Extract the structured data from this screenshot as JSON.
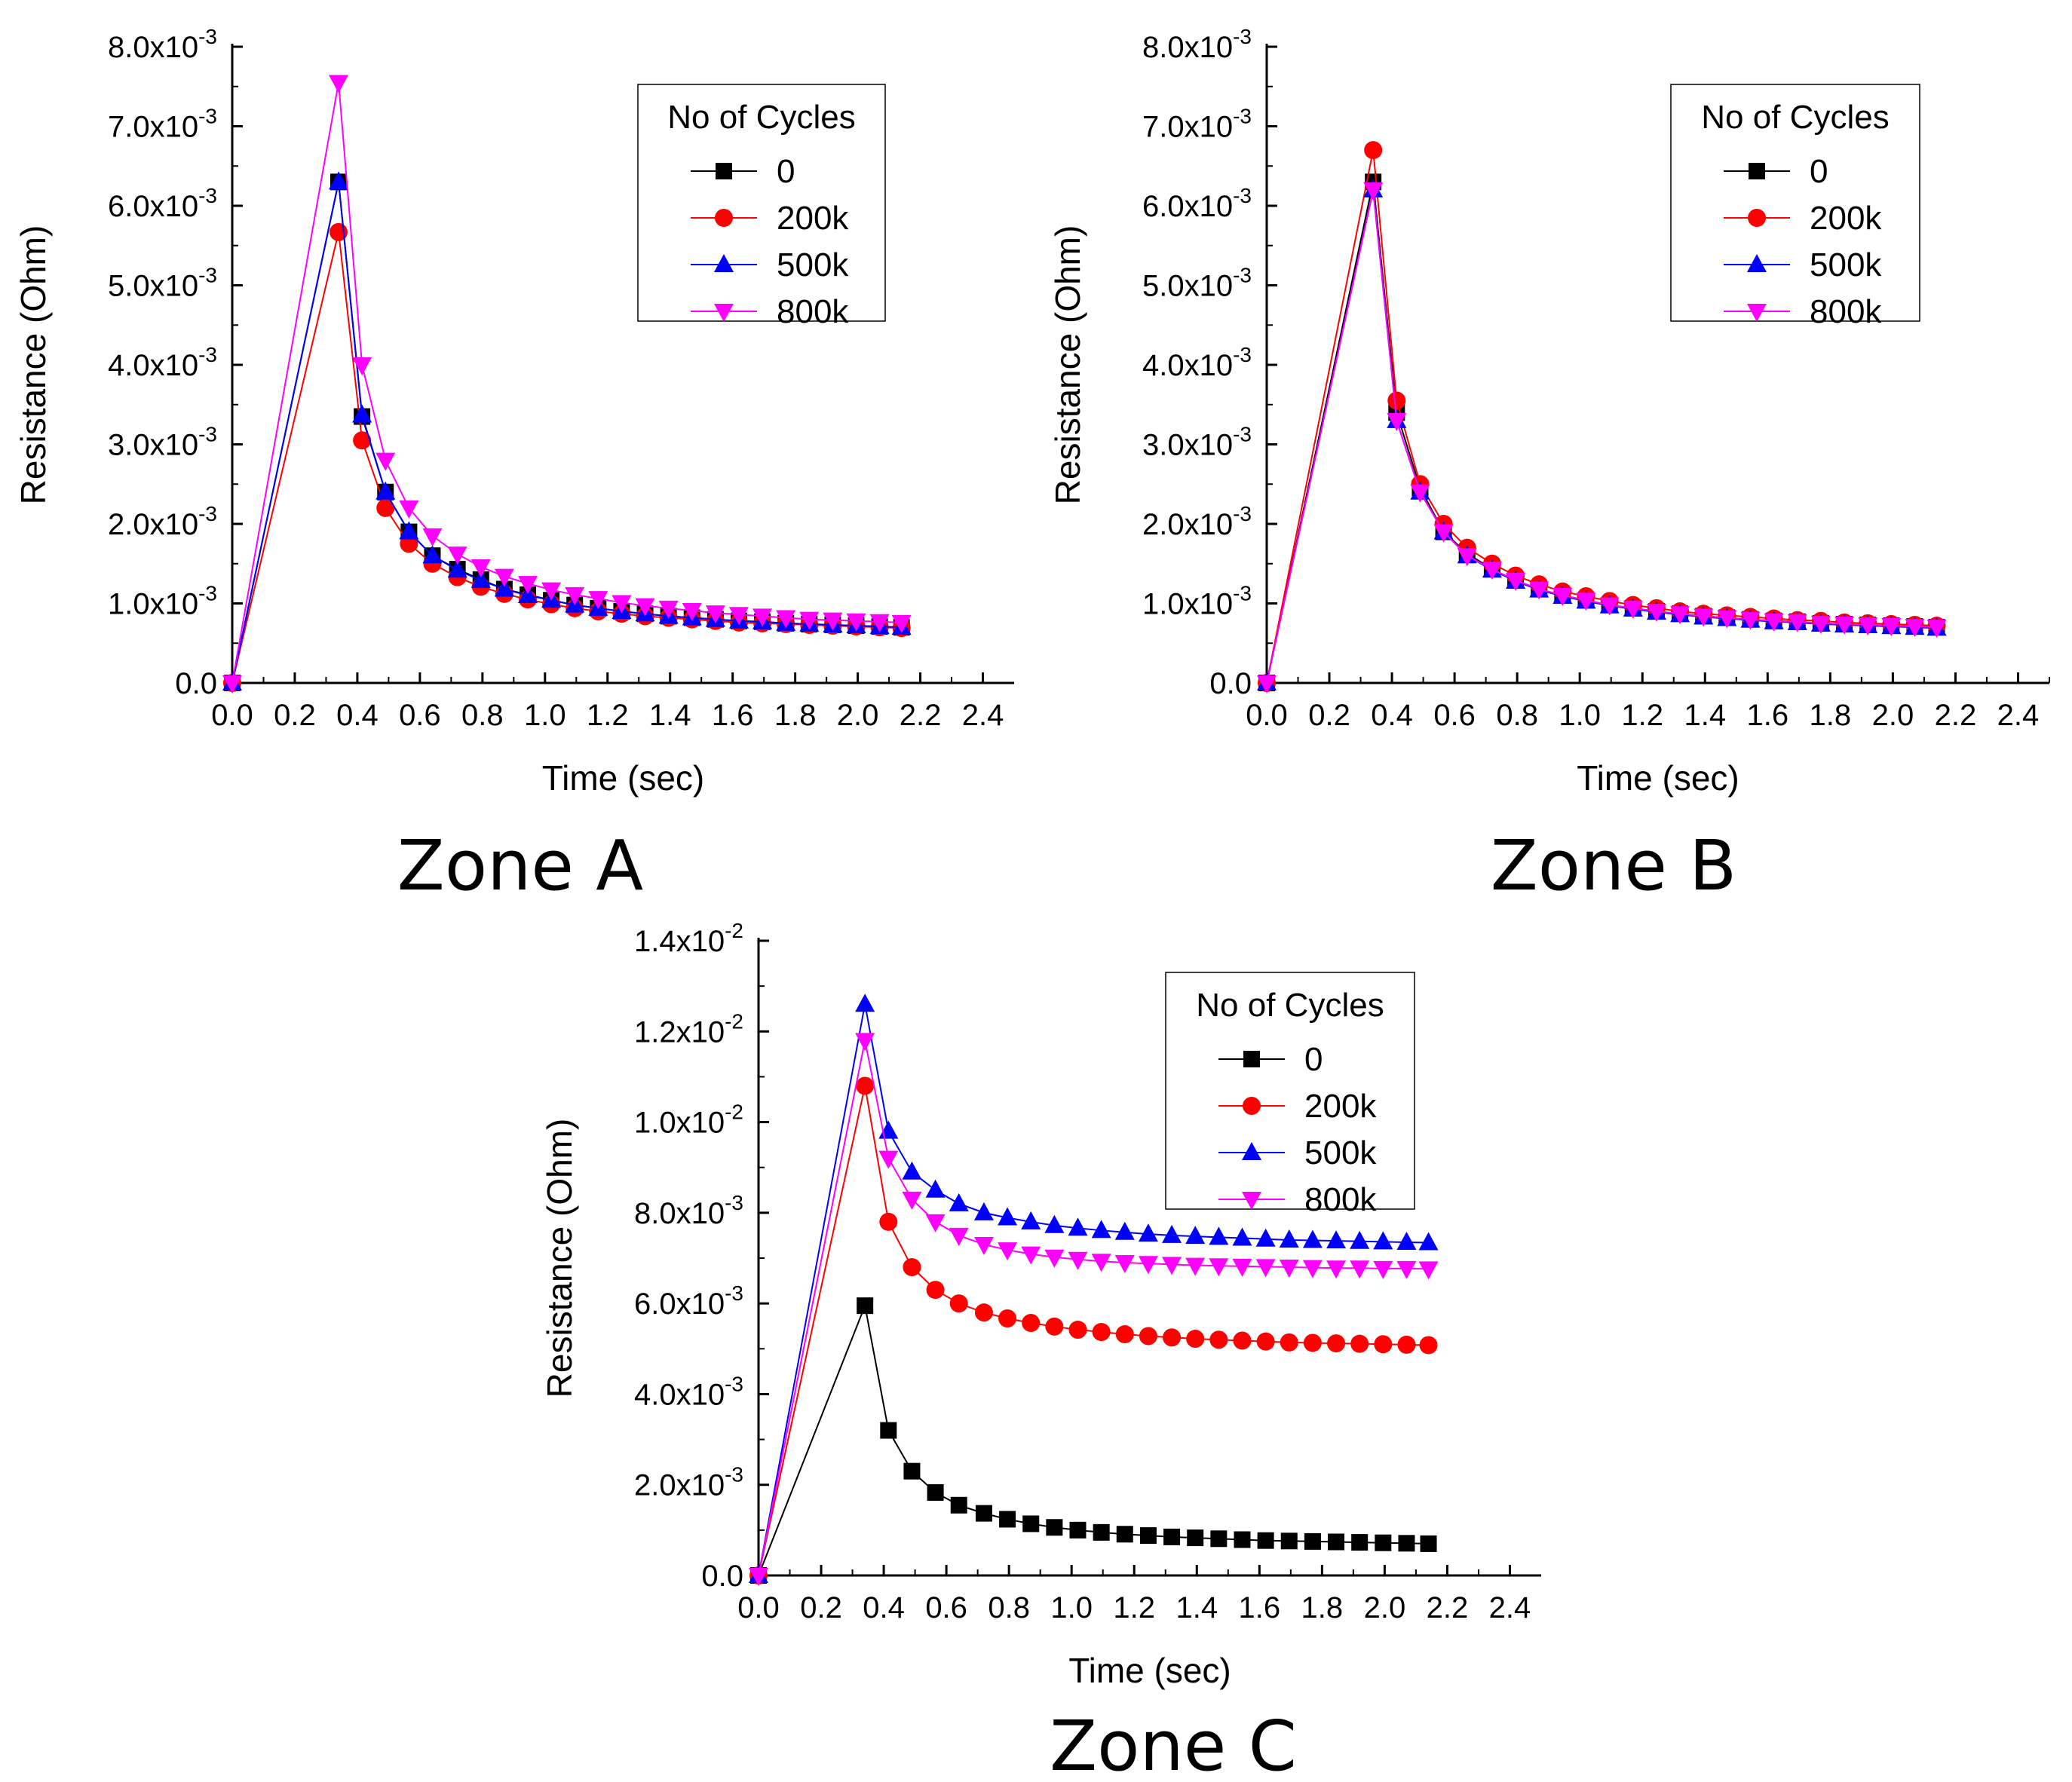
{
  "figure": {
    "panels": [
      "Zone A",
      "Zone B",
      "Zone C"
    ]
  },
  "series_styles": [
    {
      "name": "0",
      "color": "#000000",
      "marker": "square"
    },
    {
      "name": "200k",
      "color": "#ff0000",
      "marker": "circle"
    },
    {
      "name": "500k",
      "color": "#0000ff",
      "marker": "triangle-up"
    },
    {
      "name": "800k",
      "color": "#ff00ff",
      "marker": "triangle-down"
    }
  ],
  "chart_data": [
    {
      "type": "line",
      "panel_title": "Zone A",
      "xlabel": "Time (sec)",
      "ylabel": "Resistance (Ohm)",
      "xlim": [
        0,
        2.5
      ],
      "ylim": [
        0,
        0.008
      ],
      "xticks": [
        "0.0",
        "0.2",
        "0.4",
        "0.6",
        "0.8",
        "1.0",
        "1.2",
        "1.4",
        "1.6",
        "1.8",
        "2.0",
        "2.2",
        "2.4"
      ],
      "yticks": [
        {
          "m": "0.0",
          "e": ""
        },
        {
          "m": "1.0x10",
          "e": "-3"
        },
        {
          "m": "2.0x10",
          "e": "-3"
        },
        {
          "m": "3.0x10",
          "e": "-3"
        },
        {
          "m": "4.0x10",
          "e": "-3"
        },
        {
          "m": "5.0x10",
          "e": "-3"
        },
        {
          "m": "6.0x10",
          "e": "-3"
        },
        {
          "m": "7.0x10",
          "e": "-3"
        },
        {
          "m": "8.0x10",
          "e": "-3"
        }
      ],
      "legend_title": "No of Cycles",
      "legend_position": "top-right",
      "grid": false,
      "x": [
        0.0,
        0.34,
        0.415,
        0.49,
        0.565,
        0.64,
        0.72,
        0.795,
        0.87,
        0.945,
        1.02,
        1.095,
        1.17,
        1.245,
        1.32,
        1.395,
        1.47,
        1.545,
        1.62,
        1.695,
        1.77,
        1.845,
        1.92,
        1.995,
        2.07,
        2.14
      ],
      "series": [
        {
          "name": "0",
          "values": [
            0,
            0.0063,
            0.00335,
            0.0024,
            0.0019,
            0.0016,
            0.00143,
            0.0013,
            0.00118,
            0.00111,
            0.00104,
            0.00098,
            0.00094,
            0.0009,
            0.00087,
            0.00084,
            0.00082,
            0.0008,
            0.00078,
            0.00077,
            0.00075,
            0.00074,
            0.00073,
            0.00072,
            0.00071,
            0.0007
          ]
        },
        {
          "name": "200k",
          "values": [
            0,
            0.00567,
            0.00305,
            0.0022,
            0.00175,
            0.0015,
            0.00133,
            0.00121,
            0.00112,
            0.00105,
            0.00099,
            0.00094,
            0.0009,
            0.00087,
            0.00084,
            0.00082,
            0.0008,
            0.00078,
            0.00076,
            0.00075,
            0.00074,
            0.00073,
            0.00072,
            0.00071,
            0.0007,
            0.00069
          ]
        },
        {
          "name": "500k",
          "values": [
            0,
            0.0063,
            0.00337,
            0.0024,
            0.0019,
            0.0016,
            0.00142,
            0.00129,
            0.00118,
            0.0011,
            0.00104,
            0.00098,
            0.00094,
            0.0009,
            0.00087,
            0.00084,
            0.00082,
            0.0008,
            0.00078,
            0.00077,
            0.00075,
            0.00074,
            0.00073,
            0.00072,
            0.00071,
            0.0007
          ]
        },
        {
          "name": "800k",
          "values": [
            0,
            0.00755,
            0.004,
            0.0028,
            0.0022,
            0.00185,
            0.00162,
            0.00146,
            0.00134,
            0.00125,
            0.00117,
            0.00111,
            0.00106,
            0.00101,
            0.00097,
            0.00094,
            0.00091,
            0.00088,
            0.00086,
            0.00084,
            0.00082,
            0.0008,
            0.00079,
            0.00078,
            0.00077,
            0.00076
          ]
        }
      ]
    },
    {
      "type": "line",
      "panel_title": "Zone B",
      "xlabel": "Time (sec)",
      "ylabel": "Resistance (Ohm)",
      "xlim": [
        0,
        2.5
      ],
      "ylim": [
        0,
        0.008
      ],
      "xticks": [
        "0.0",
        "0.2",
        "0.4",
        "0.6",
        "0.8",
        "1.0",
        "1.2",
        "1.4",
        "1.6",
        "1.8",
        "2.0",
        "2.2",
        "2.4"
      ],
      "yticks": [
        {
          "m": "0.0",
          "e": ""
        },
        {
          "m": "1.0x10",
          "e": "-3"
        },
        {
          "m": "2.0x10",
          "e": "-3"
        },
        {
          "m": "3.0x10",
          "e": "-3"
        },
        {
          "m": "4.0x10",
          "e": "-3"
        },
        {
          "m": "5.0x10",
          "e": "-3"
        },
        {
          "m": "6.0x10",
          "e": "-3"
        },
        {
          "m": "7.0x10",
          "e": "-3"
        },
        {
          "m": "8.0x10",
          "e": "-3"
        }
      ],
      "legend_title": "No of Cycles",
      "legend_position": "top-right",
      "grid": false,
      "x": [
        0.0,
        0.34,
        0.415,
        0.49,
        0.565,
        0.64,
        0.72,
        0.795,
        0.87,
        0.945,
        1.02,
        1.095,
        1.17,
        1.245,
        1.32,
        1.395,
        1.47,
        1.545,
        1.62,
        1.695,
        1.77,
        1.845,
        1.92,
        1.995,
        2.07,
        2.14
      ],
      "series": [
        {
          "name": "0",
          "values": [
            0,
            0.0063,
            0.0034,
            0.00245,
            0.0019,
            0.00163,
            0.00143,
            0.00129,
            0.00118,
            0.0011,
            0.00104,
            0.00098,
            0.00094,
            0.0009,
            0.00087,
            0.00084,
            0.00082,
            0.0008,
            0.00078,
            0.00077,
            0.00075,
            0.00074,
            0.00073,
            0.00072,
            0.00071,
            0.0007
          ]
        },
        {
          "name": "200k",
          "values": [
            0,
            0.0067,
            0.00355,
            0.0025,
            0.002,
            0.0017,
            0.0015,
            0.00135,
            0.00124,
            0.00115,
            0.00109,
            0.00103,
            0.00098,
            0.00094,
            0.0009,
            0.00087,
            0.00085,
            0.00083,
            0.00081,
            0.00079,
            0.00078,
            0.00076,
            0.00075,
            0.00074,
            0.00073,
            0.00072
          ]
        },
        {
          "name": "500k",
          "values": [
            0,
            0.0062,
            0.0033,
            0.0024,
            0.0019,
            0.0016,
            0.00142,
            0.00128,
            0.00117,
            0.00109,
            0.00103,
            0.00097,
            0.00093,
            0.00089,
            0.00086,
            0.00083,
            0.00081,
            0.00079,
            0.00077,
            0.00076,
            0.00074,
            0.00073,
            0.00072,
            0.00071,
            0.0007,
            0.00069
          ]
        },
        {
          "name": "800k",
          "values": [
            0,
            0.0062,
            0.0033,
            0.0024,
            0.0019,
            0.0016,
            0.00143,
            0.00129,
            0.00118,
            0.0011,
            0.00104,
            0.00098,
            0.00094,
            0.0009,
            0.00087,
            0.00084,
            0.00082,
            0.0008,
            0.00078,
            0.00077,
            0.00075,
            0.00074,
            0.00073,
            0.00072,
            0.00071,
            0.0007
          ]
        }
      ]
    },
    {
      "type": "line",
      "panel_title": "Zone C",
      "xlabel": "Time (sec)",
      "ylabel": "Resistance (Ohm)",
      "xlim": [
        0,
        2.5
      ],
      "ylim": [
        0,
        0.014
      ],
      "xticks": [
        "0.0",
        "0.2",
        "0.4",
        "0.6",
        "0.8",
        "1.0",
        "1.2",
        "1.4",
        "1.6",
        "1.8",
        "2.0",
        "2.2",
        "2.4"
      ],
      "yticks": [
        {
          "m": "0.0",
          "e": ""
        },
        {
          "m": "2.0x10",
          "e": "-3"
        },
        {
          "m": "4.0x10",
          "e": "-3"
        },
        {
          "m": "6.0x10",
          "e": "-3"
        },
        {
          "m": "8.0x10",
          "e": "-3"
        },
        {
          "m": "1.0x10",
          "e": "-2"
        },
        {
          "m": "1.2x10",
          "e": "-2"
        },
        {
          "m": "1.4x10",
          "e": "-2"
        }
      ],
      "legend_title": "No of Cycles",
      "legend_position": "top-right",
      "grid": false,
      "x": [
        0.0,
        0.34,
        0.415,
        0.49,
        0.565,
        0.64,
        0.72,
        0.795,
        0.87,
        0.945,
        1.02,
        1.095,
        1.17,
        1.245,
        1.32,
        1.395,
        1.47,
        1.545,
        1.62,
        1.695,
        1.77,
        1.845,
        1.92,
        1.995,
        2.07,
        2.14
      ],
      "series": [
        {
          "name": "0",
          "values": [
            0,
            0.00595,
            0.0032,
            0.0023,
            0.00183,
            0.00155,
            0.00137,
            0.00124,
            0.00114,
            0.00106,
            0.001,
            0.00095,
            0.00091,
            0.00088,
            0.00085,
            0.00083,
            0.00081,
            0.00079,
            0.00077,
            0.00076,
            0.00075,
            0.00074,
            0.00073,
            0.00072,
            0.00071,
            0.0007
          ]
        },
        {
          "name": "200k",
          "values": [
            0,
            0.0108,
            0.0078,
            0.0068,
            0.0063,
            0.006,
            0.0058,
            0.00567,
            0.00557,
            0.00549,
            0.00542,
            0.00537,
            0.00532,
            0.00528,
            0.00525,
            0.00522,
            0.0052,
            0.00518,
            0.00516,
            0.00514,
            0.00513,
            0.00512,
            0.00511,
            0.0051,
            0.00509,
            0.00508
          ]
        },
        {
          "name": "500k",
          "values": [
            0,
            0.0126,
            0.0098,
            0.0089,
            0.0085,
            0.0082,
            0.008,
            0.00789,
            0.0078,
            0.00772,
            0.00766,
            0.00761,
            0.00757,
            0.00753,
            0.0075,
            0.00748,
            0.00746,
            0.00744,
            0.00742,
            0.0074,
            0.00739,
            0.00738,
            0.00737,
            0.00736,
            0.00735,
            0.00734
          ]
        },
        {
          "name": "800k",
          "values": [
            0,
            0.0118,
            0.0092,
            0.0083,
            0.0078,
            0.0075,
            0.0073,
            0.00718,
            0.00709,
            0.00702,
            0.00697,
            0.00693,
            0.0069,
            0.00688,
            0.00686,
            0.00684,
            0.00683,
            0.00682,
            0.00681,
            0.0068,
            0.00679,
            0.00678,
            0.00678,
            0.00677,
            0.00677,
            0.00676
          ]
        }
      ]
    }
  ]
}
